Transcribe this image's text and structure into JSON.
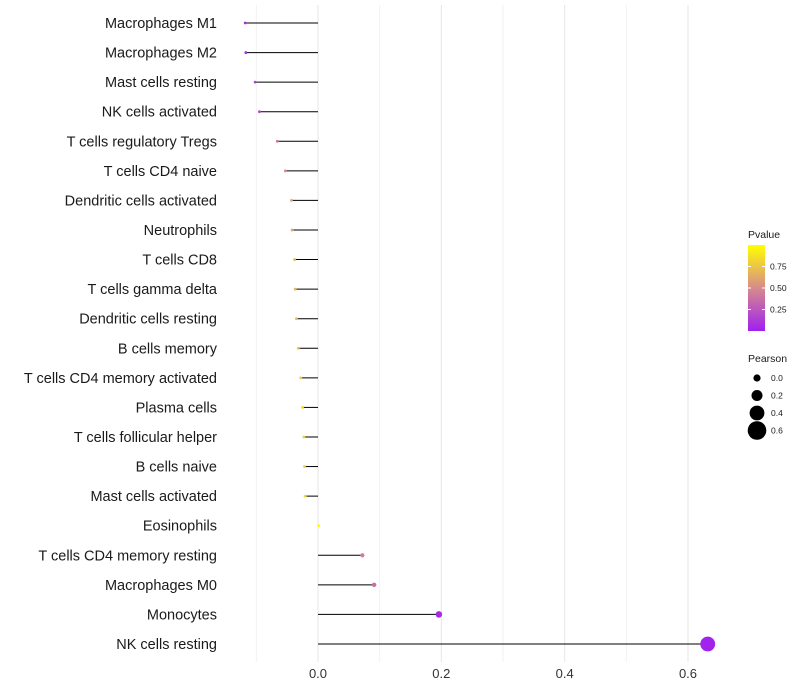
{
  "chart_data": {
    "type": "lollipop",
    "title": "",
    "xlabel": "",
    "ylabel": "",
    "xlim": [
      -0.13,
      0.66
    ],
    "xticks": [
      0.0,
      0.2,
      0.4,
      0.6
    ],
    "xtick_labels": [
      "0.0",
      "0.2",
      "0.4",
      "0.6"
    ],
    "categories": [
      "Macrophages M1",
      "Macrophages M2",
      "Mast cells resting",
      "NK cells activated",
      "T cells regulatory  Tregs",
      "T cells CD4 naive",
      "Dendritic cells activated",
      "Neutrophils",
      "T cells CD8",
      "T cells gamma delta",
      "Dendritic cells resting",
      "B cells memory",
      "T cells CD4 memory activated",
      "Plasma cells",
      "T cells follicular helper",
      "B cells naive",
      "Mast cells activated",
      "Eosinophils",
      "T cells CD4 memory resting",
      "Macrophages M0",
      "Monocytes",
      "NK cells resting"
    ],
    "values": [
      -0.118,
      -0.117,
      -0.102,
      -0.095,
      -0.066,
      -0.053,
      -0.043,
      -0.042,
      -0.038,
      -0.037,
      -0.035,
      -0.032,
      -0.028,
      -0.025,
      -0.023,
      -0.022,
      -0.021,
      0.001,
      0.072,
      0.091,
      0.196,
      0.632
    ],
    "pvalues": [
      0.05,
      0.06,
      0.16,
      0.2,
      0.4,
      0.5,
      0.6,
      0.62,
      0.68,
      0.7,
      0.72,
      0.74,
      0.78,
      0.8,
      0.82,
      0.82,
      0.84,
      0.99,
      0.45,
      0.38,
      0.05,
      0.02
    ],
    "legend": {
      "color": {
        "title": "Pvalue",
        "ticks": [
          0.25,
          0.5,
          0.75
        ],
        "tick_labels": [
          "0.25",
          "0.50",
          "0.75"
        ],
        "range": [
          0.0,
          1.0
        ],
        "low_color": "#a020f0",
        "mid_color": "#d68b8b",
        "high_color": "#ffff00"
      },
      "size": {
        "title": "Pearson",
        "values": [
          0.0,
          0.2,
          0.4,
          0.6
        ],
        "labels": [
          "0.0",
          "0.2",
          "0.4",
          "0.6"
        ]
      },
      "placement": "right"
    },
    "grid": true
  }
}
